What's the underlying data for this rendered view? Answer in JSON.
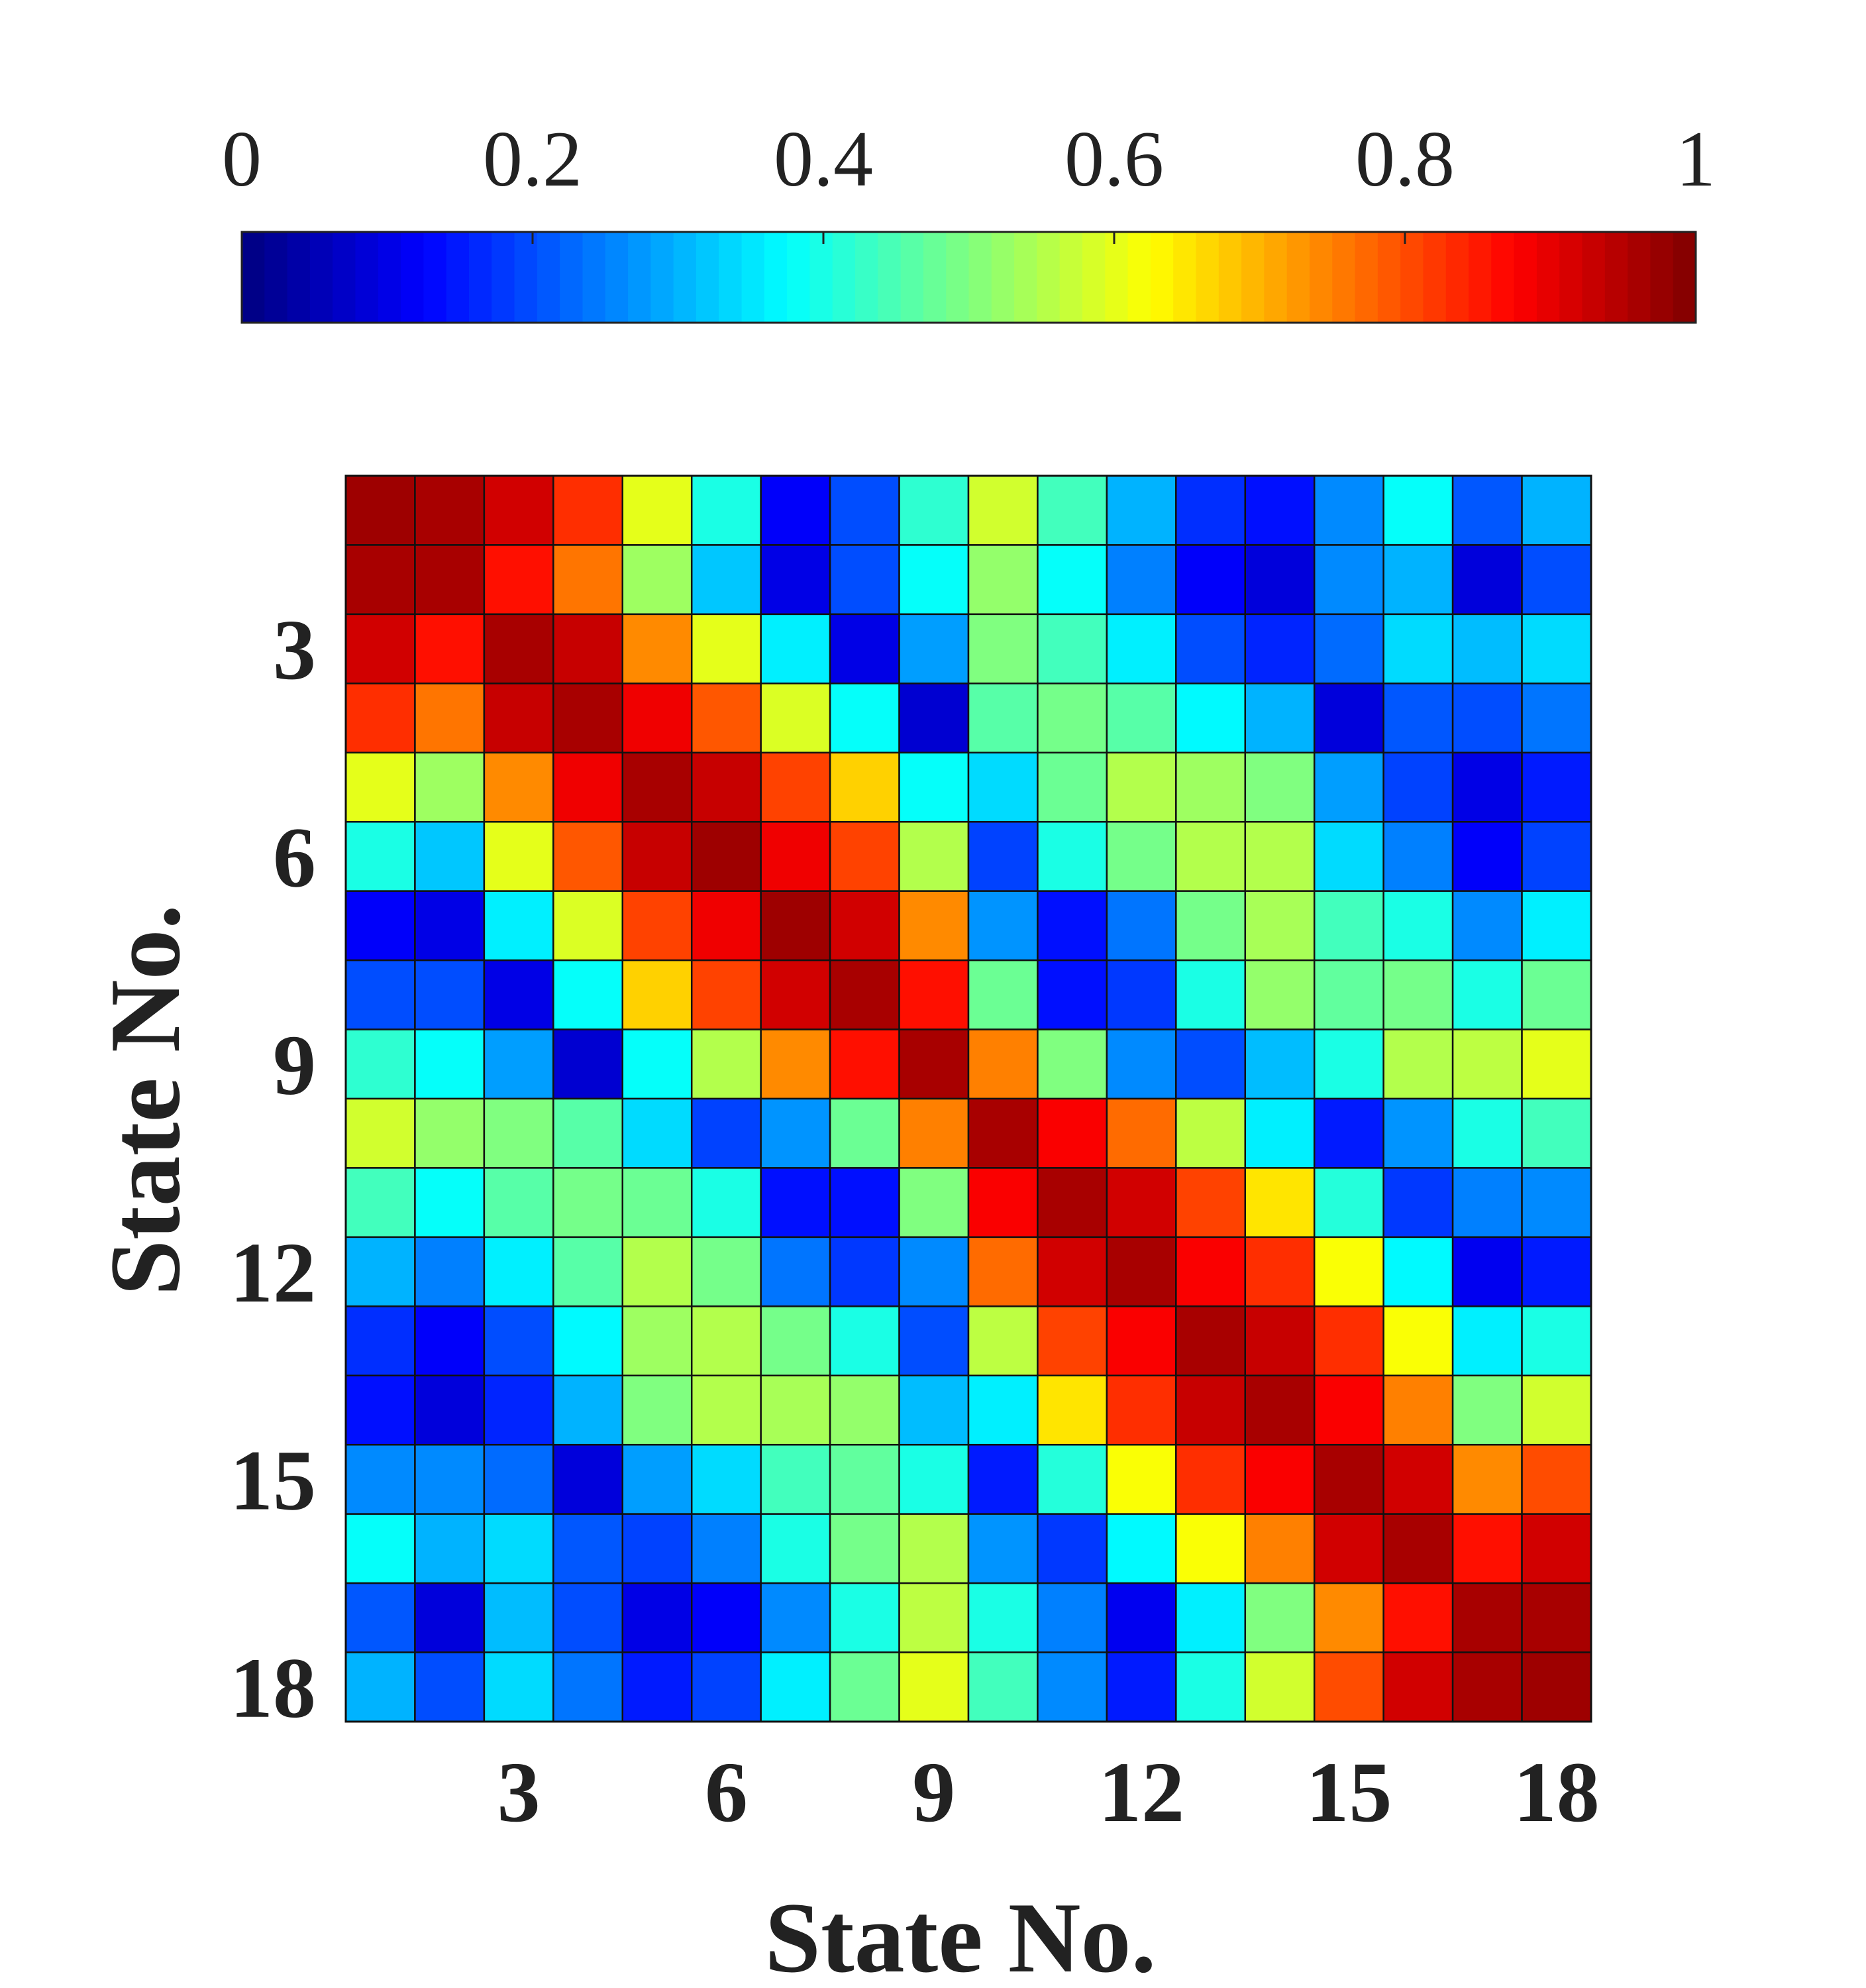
{
  "chart_data": {
    "type": "heatmap",
    "xlabel": "State No.",
    "ylabel": "State No.",
    "x_ticks": [
      3,
      6,
      9,
      12,
      15,
      18
    ],
    "y_ticks": [
      3,
      6,
      9,
      12,
      15,
      18
    ],
    "colormap": "jet",
    "colorbar": {
      "placement": "top",
      "range": [
        0,
        1
      ],
      "ticks": [
        0,
        0.2,
        0.4,
        0.6,
        0.8,
        1
      ],
      "tick_labels": [
        "0",
        "0.2",
        "0.4",
        "0.6",
        "0.8",
        "1"
      ]
    },
    "values": [
      [
        0.97,
        0.96,
        0.92,
        0.83,
        0.6,
        0.4,
        0.12,
        0.2,
        0.42,
        0.58,
        0.44,
        0.3,
        0.17,
        0.14,
        0.26,
        0.38,
        0.21,
        0.3
      ],
      [
        0.96,
        0.96,
        0.86,
        0.76,
        0.53,
        0.32,
        0.1,
        0.2,
        0.38,
        0.52,
        0.38,
        0.25,
        0.12,
        0.09,
        0.26,
        0.3,
        0.09,
        0.2
      ],
      [
        0.92,
        0.86,
        0.96,
        0.93,
        0.74,
        0.6,
        0.36,
        0.1,
        0.28,
        0.5,
        0.44,
        0.36,
        0.2,
        0.16,
        0.23,
        0.34,
        0.31,
        0.34
      ],
      [
        0.83,
        0.76,
        0.93,
        0.96,
        0.89,
        0.79,
        0.59,
        0.38,
        0.08,
        0.46,
        0.49,
        0.46,
        0.37,
        0.3,
        0.09,
        0.21,
        0.2,
        0.24
      ],
      [
        0.6,
        0.53,
        0.74,
        0.89,
        0.96,
        0.93,
        0.81,
        0.67,
        0.38,
        0.34,
        0.48,
        0.55,
        0.53,
        0.5,
        0.28,
        0.19,
        0.1,
        0.15
      ],
      [
        0.4,
        0.32,
        0.6,
        0.79,
        0.93,
        0.97,
        0.89,
        0.81,
        0.55,
        0.19,
        0.4,
        0.49,
        0.55,
        0.55,
        0.34,
        0.25,
        0.12,
        0.19
      ],
      [
        0.12,
        0.1,
        0.36,
        0.59,
        0.81,
        0.89,
        0.97,
        0.92,
        0.74,
        0.27,
        0.14,
        0.24,
        0.49,
        0.54,
        0.44,
        0.4,
        0.26,
        0.36
      ],
      [
        0.2,
        0.2,
        0.1,
        0.38,
        0.67,
        0.81,
        0.92,
        0.96,
        0.86,
        0.48,
        0.14,
        0.18,
        0.4,
        0.52,
        0.47,
        0.49,
        0.4,
        0.48
      ],
      [
        0.42,
        0.38,
        0.28,
        0.08,
        0.38,
        0.55,
        0.74,
        0.86,
        0.96,
        0.75,
        0.5,
        0.26,
        0.2,
        0.31,
        0.4,
        0.55,
        0.56,
        0.6
      ],
      [
        0.58,
        0.52,
        0.5,
        0.46,
        0.34,
        0.19,
        0.27,
        0.48,
        0.75,
        0.96,
        0.88,
        0.77,
        0.56,
        0.36,
        0.15,
        0.27,
        0.4,
        0.44
      ],
      [
        0.44,
        0.38,
        0.46,
        0.49,
        0.48,
        0.4,
        0.14,
        0.14,
        0.5,
        0.88,
        0.96,
        0.92,
        0.81,
        0.65,
        0.41,
        0.18,
        0.25,
        0.26
      ],
      [
        0.3,
        0.25,
        0.36,
        0.46,
        0.55,
        0.49,
        0.24,
        0.18,
        0.26,
        0.77,
        0.92,
        0.96,
        0.88,
        0.83,
        0.62,
        0.37,
        0.11,
        0.15
      ],
      [
        0.17,
        0.12,
        0.2,
        0.37,
        0.53,
        0.55,
        0.49,
        0.4,
        0.2,
        0.56,
        0.81,
        0.88,
        0.96,
        0.93,
        0.83,
        0.62,
        0.36,
        0.4
      ],
      [
        0.14,
        0.09,
        0.16,
        0.3,
        0.5,
        0.55,
        0.54,
        0.52,
        0.31,
        0.36,
        0.65,
        0.83,
        0.93,
        0.96,
        0.88,
        0.75,
        0.5,
        0.58
      ],
      [
        0.26,
        0.26,
        0.23,
        0.09,
        0.28,
        0.34,
        0.44,
        0.47,
        0.4,
        0.15,
        0.41,
        0.62,
        0.83,
        0.88,
        0.96,
        0.92,
        0.74,
        0.8
      ],
      [
        0.38,
        0.3,
        0.34,
        0.21,
        0.19,
        0.25,
        0.4,
        0.49,
        0.55,
        0.27,
        0.18,
        0.37,
        0.62,
        0.75,
        0.92,
        0.96,
        0.86,
        0.92
      ],
      [
        0.21,
        0.09,
        0.31,
        0.2,
        0.1,
        0.12,
        0.26,
        0.4,
        0.56,
        0.4,
        0.25,
        0.11,
        0.36,
        0.5,
        0.74,
        0.86,
        0.96,
        0.96
      ],
      [
        0.3,
        0.2,
        0.34,
        0.24,
        0.15,
        0.19,
        0.36,
        0.48,
        0.6,
        0.44,
        0.26,
        0.15,
        0.4,
        0.58,
        0.8,
        0.92,
        0.96,
        0.97
      ]
    ]
  }
}
